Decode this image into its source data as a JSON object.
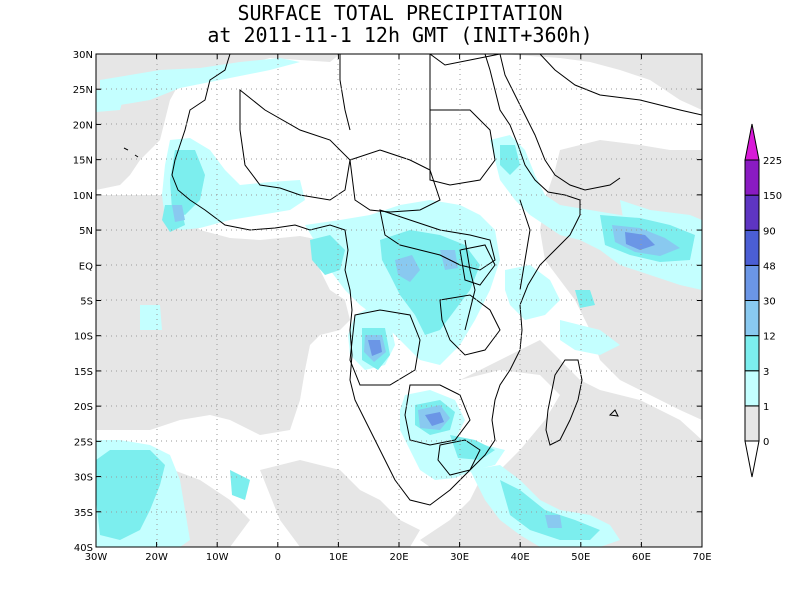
{
  "title": {
    "line1": "SURFACE TOTAL PRECIPITATION",
    "line2": "at 2011-11-1 12h GMT (INIT+360h)"
  },
  "map": {
    "y_ticks": [
      "30N",
      "25N",
      "20N",
      "15N",
      "10N",
      "5N",
      "EQ",
      "5S",
      "10S",
      "15S",
      "20S",
      "25S",
      "30S",
      "35S",
      "40S"
    ],
    "x_ticks": [
      "30W",
      "20W",
      "10W",
      "0",
      "10E",
      "20E",
      "30E",
      "40E",
      "50E",
      "60E",
      "70E"
    ],
    "lon_range": [
      -30,
      70
    ],
    "lat_range": [
      -40,
      30
    ]
  },
  "colorbar": {
    "labels": [
      "0",
      "1",
      "3",
      "12",
      "30",
      "48",
      "90",
      "150",
      "225"
    ],
    "colors": [
      "#ffffff",
      "#e6e6e6",
      "#c4ffff",
      "#7ceeee",
      "#89c9f0",
      "#6b96e6",
      "#4b5ed4",
      "#5e35c2",
      "#8a1bc2",
      "#d81ad8"
    ]
  }
}
